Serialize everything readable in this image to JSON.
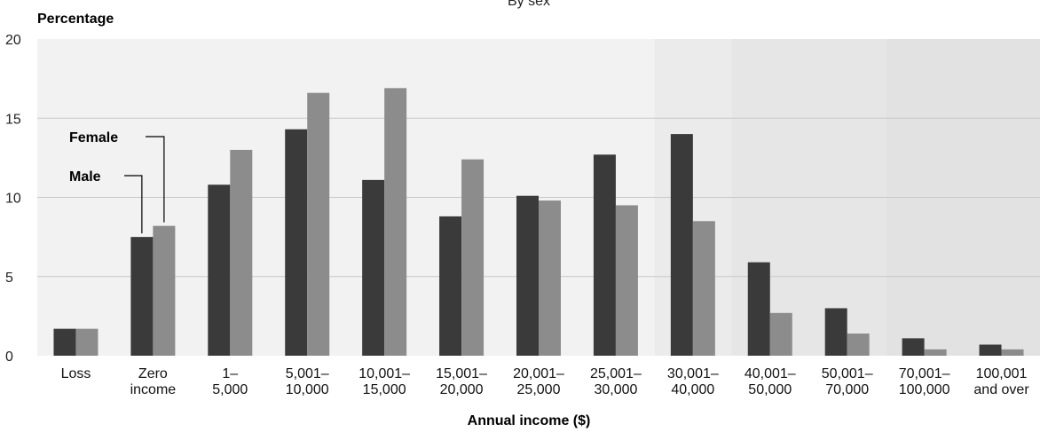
{
  "chart_data": {
    "type": "bar",
    "title": "By sex",
    "ylabel": "Percentage",
    "xlabel": "Annual income ($)",
    "ylim": [
      0,
      20
    ],
    "yticks": [
      0,
      5,
      10,
      15,
      20
    ],
    "grid": true,
    "categories": [
      [
        "Loss"
      ],
      [
        "Zero",
        "income"
      ],
      [
        "1–",
        "5,000"
      ],
      [
        "5,001–",
        "10,000"
      ],
      [
        "10,001–",
        "15,000"
      ],
      [
        "15,001–",
        "20,000"
      ],
      [
        "20,001–",
        "25,000"
      ],
      [
        "25,001–",
        "30,000"
      ],
      [
        "30,001–",
        "40,000"
      ],
      [
        "40,001–",
        "50,000"
      ],
      [
        "50,001–",
        "70,000"
      ],
      [
        "70,001–",
        "100,000"
      ],
      [
        "100,001",
        "and over"
      ]
    ],
    "series": [
      {
        "name": "Male",
        "color": "#3a3a3a",
        "values": [
          1.7,
          7.5,
          10.8,
          14.3,
          11.1,
          8.8,
          10.1,
          12.7,
          14.0,
          5.9,
          3.0,
          1.1,
          0.7
        ]
      },
      {
        "name": "Female",
        "color": "#8c8c8c",
        "values": [
          1.7,
          8.2,
          13.0,
          16.6,
          16.9,
          12.4,
          9.8,
          9.5,
          8.5,
          2.7,
          1.4,
          0.4,
          0.4
        ]
      }
    ],
    "legend": "inline-callouts",
    "background_bands": [
      {
        "from_category": 0,
        "to_category": 7,
        "color": "#f2f2f2"
      },
      {
        "from_category": 8,
        "to_category": 8,
        "color": "#ebebeb"
      },
      {
        "from_category": 9,
        "to_category": 10,
        "color": "#e6e6e6"
      },
      {
        "from_category": 11,
        "to_category": 12,
        "color": "#e2e2e2"
      }
    ]
  }
}
